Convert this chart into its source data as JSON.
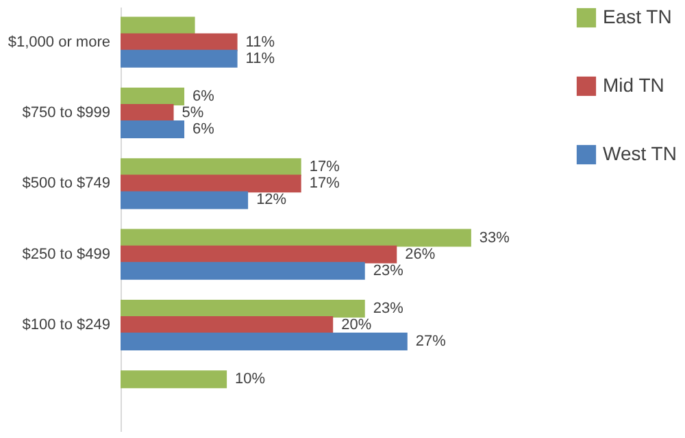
{
  "chart_data": {
    "type": "bar",
    "orientation": "horizontal",
    "categories": [
      "$1,000 or more",
      "$750 to $999",
      "$500 to $749",
      "$250 to $499",
      "$100 to $249",
      null
    ],
    "series": [
      {
        "name": "East TN",
        "color": "#9bbb59",
        "values": [
          7,
          6,
          17,
          33,
          23,
          10
        ],
        "value_labels": [
          null,
          "6%",
          "17%",
          "33%",
          "23%",
          "10%"
        ]
      },
      {
        "name": "Mid TN",
        "color": "#c0504d",
        "values": [
          11,
          5,
          17,
          26,
          20,
          null
        ],
        "value_labels": [
          "11%",
          "5%",
          "17%",
          "26%",
          "20%",
          null
        ]
      },
      {
        "name": "West TN",
        "color": "#4f81bd",
        "values": [
          11,
          6,
          12,
          23,
          27,
          null
        ],
        "value_labels": [
          "11%",
          "6%",
          "12%",
          "23%",
          "27%",
          null
        ]
      }
    ],
    "legend": "right",
    "grid": false,
    "tick_labels": "y"
  }
}
